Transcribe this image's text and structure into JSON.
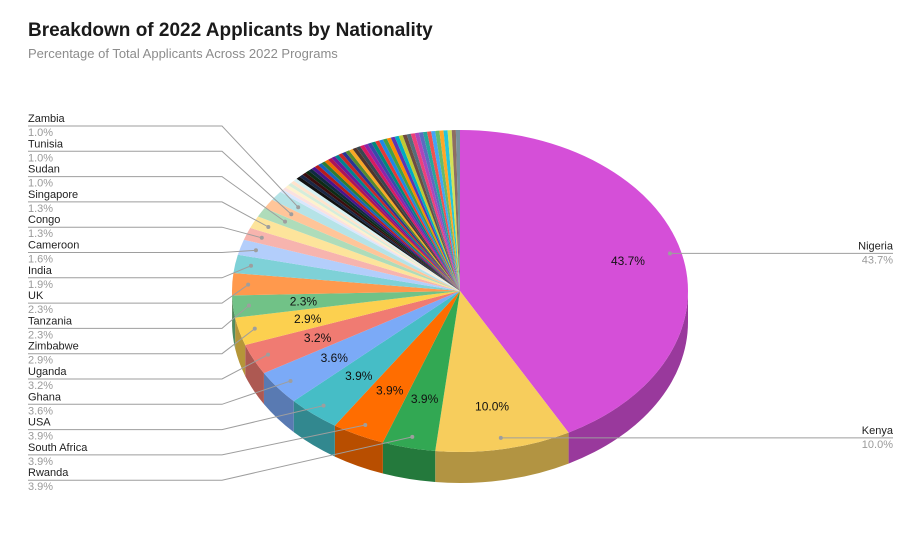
{
  "chart_data": {
    "type": "pie",
    "title": "Breakdown of 2022 Applicants by Nationality",
    "subtitle": "Percentage of Total Applicants Across 2022 Programs",
    "three_d": true,
    "slices": [
      {
        "label": "Nigeria",
        "value": 43.7,
        "display": "43.7%",
        "color": "#d54fd8"
      },
      {
        "label": "Kenya",
        "value": 10.0,
        "display": "10.0%",
        "color": "#f7cd5c"
      },
      {
        "label": "Rwanda",
        "value": 3.9,
        "display": "3.9%",
        "color": "#32a853"
      },
      {
        "label": "South Africa",
        "value": 3.9,
        "display": "3.9%",
        "color": "#ff6d00"
      },
      {
        "label": "USA",
        "value": 3.9,
        "display": "3.9%",
        "color": "#46bdc6"
      },
      {
        "label": "Ghana",
        "value": 3.6,
        "display": "3.6%",
        "color": "#7baaf7"
      },
      {
        "label": "Uganda",
        "value": 3.2,
        "display": "3.2%",
        "color": "#f07b72"
      },
      {
        "label": "Zimbabwe",
        "value": 2.9,
        "display": "2.9%",
        "color": "#fcd04f"
      },
      {
        "label": "Tanzania",
        "value": 2.3,
        "display": "2.3%",
        "color": "#71c287"
      },
      {
        "label": "UK",
        "value": 2.3,
        "display": "2.3%",
        "color": "#ff994d"
      },
      {
        "label": "India",
        "value": 1.9,
        "display": "1.9%",
        "color": "#7ed1d7"
      },
      {
        "label": "Cameroon",
        "value": 1.6,
        "display": "1.6%",
        "color": "#b3cefb"
      },
      {
        "label": "Congo",
        "value": 1.3,
        "display": "1.3%",
        "color": "#f7b4ae"
      },
      {
        "label": "Singapore",
        "value": 1.3,
        "display": "1.3%",
        "color": "#fde49b"
      },
      {
        "label": "Sudan",
        "value": 1.0,
        "display": "1.0%",
        "color": "#aedcba"
      },
      {
        "label": "Tunisia",
        "value": 1.0,
        "display": "1.0%",
        "color": "#ffc599"
      },
      {
        "label": "Zambia",
        "value": 1.0,
        "display": "1.0%",
        "color": "#b5e3e7"
      }
    ],
    "minor_slices": {
      "count": 50,
      "value_each": 0.3,
      "colors": [
        "#d9e7fd",
        "#fbe1df",
        "#fef2cd",
        "#d5eddb",
        "#ffe3cc",
        "#d6f1f3",
        "#111111",
        "#1a2744",
        "#3a0d0d",
        "#0d2b14",
        "#102a43",
        "#4a148c",
        "#b71c1c",
        "#1565c0",
        "#2e7d32",
        "#ef6c00",
        "#ad1457",
        "#6a1b9a",
        "#00838f",
        "#c62828",
        "#283593",
        "#558b2f",
        "#f9a825",
        "#4e342e",
        "#37474f",
        "#d81b60",
        "#8e24aa",
        "#3949ab",
        "#00897b",
        "#e53935",
        "#1e88e5",
        "#43a047",
        "#fb8c00",
        "#5e35b1",
        "#00acc1",
        "#c0ca33",
        "#6d4c41",
        "#546e7a",
        "#ec407a",
        "#ab47bc",
        "#5c6bc0",
        "#26a69a",
        "#ef5350",
        "#42a5f5",
        "#66bb6a",
        "#ffa726",
        "#26c6da",
        "#d4e157",
        "#8d6e63",
        "#78909c"
      ]
    },
    "inside_labels": [
      "Nigeria",
      "Kenya",
      "Rwanda",
      "South Africa",
      "USA",
      "Ghana",
      "Uganda",
      "Zimbabwe",
      "Tanzania"
    ],
    "legend": "callout labels outside slices"
  }
}
